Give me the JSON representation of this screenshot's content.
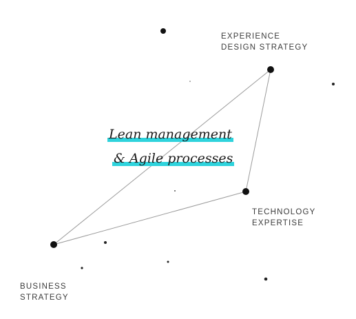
{
  "nodes": {
    "experience": {
      "lines": [
        "EXPERIENCE",
        "DESIGN STRATEGY"
      ]
    },
    "technology": {
      "lines": [
        "TECHNOLOGY",
        "EXPERTISE"
      ]
    },
    "business": {
      "lines": [
        "BUSINESS",
        "STRATEGY"
      ]
    }
  },
  "center": {
    "line1": "Lean management",
    "line2": "& Agile processes"
  },
  "colors": {
    "highlight": "#2ed3dc",
    "node": "#111111",
    "edge": "#9a9a9a",
    "label": "#3a3a3a"
  }
}
